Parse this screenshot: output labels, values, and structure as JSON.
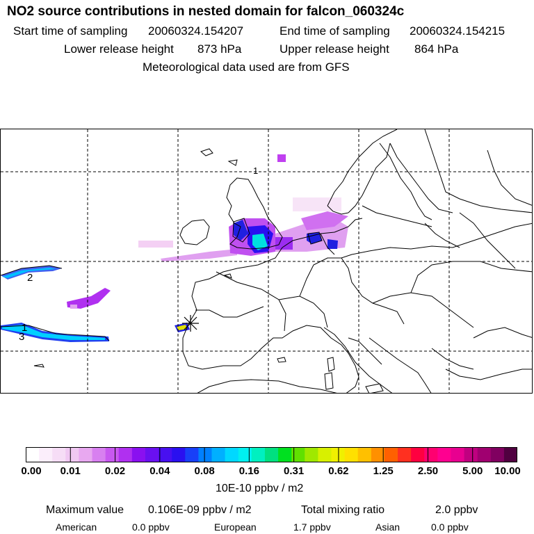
{
  "header": {
    "title": "NO2 source contributions in nested domain for falcon_060324c",
    "start_label": "Start time of sampling",
    "start_value": "20060324.154207",
    "end_label": "End time of sampling",
    "end_value": "20060324.154215",
    "lower_label": "Lower release height",
    "lower_value": "873 hPa",
    "upper_label": "Upper release height",
    "upper_value": "864 hPa",
    "met_line": "Meteorological data used are from GFS"
  },
  "map": {
    "contour_labels": [
      "1",
      "2",
      "1",
      "3"
    ],
    "colors": {
      "coast": "#000000",
      "grid": "#000000",
      "plume_low": "#f4d0f4",
      "plume_mid": "#b040f0",
      "plume_high": "#2020e0",
      "plume_peak": "#00e0e0"
    }
  },
  "colorbar": {
    "colors": [
      "#ffffff",
      "#fbeefb",
      "#f6ddf6",
      "#f0c8f2",
      "#e8a8f0",
      "#d880f0",
      "#c858f0",
      "#b030f0",
      "#8a10f0",
      "#6a10f0",
      "#4810f0",
      "#2a10f0",
      "#1840f8",
      "#0080ff",
      "#00b0ff",
      "#00d8ff",
      "#00f0f0",
      "#00f0c0",
      "#00e080",
      "#00e020",
      "#60e000",
      "#a0e800",
      "#d8f000",
      "#f0f000",
      "#ffe000",
      "#ffc000",
      "#ff9000",
      "#ff6000",
      "#ff3020",
      "#ff0040",
      "#ff0070",
      "#ff0090",
      "#e80090",
      "#c00080",
      "#a00070",
      "#800060",
      "#500040"
    ],
    "ticks": [
      "0.00",
      "0.01",
      "0.02",
      "0.04",
      "0.08",
      "0.16",
      "0.31",
      "0.62",
      "1.25",
      "2.50",
      "5.00",
      "10.00"
    ],
    "unit": "10E-10 ppbv / m2"
  },
  "summary": {
    "max_label": "Maximum value",
    "max_value": "0.106E-09 ppbv / m2",
    "total_label": "Total mixing ratio",
    "total_value": "2.0 ppbv",
    "american_label": "American",
    "american_value": "0.0 ppbv",
    "european_label": "European",
    "european_value": "1.7 ppbv",
    "asian_label": "Asian",
    "asian_value": "0.0 ppbv"
  }
}
